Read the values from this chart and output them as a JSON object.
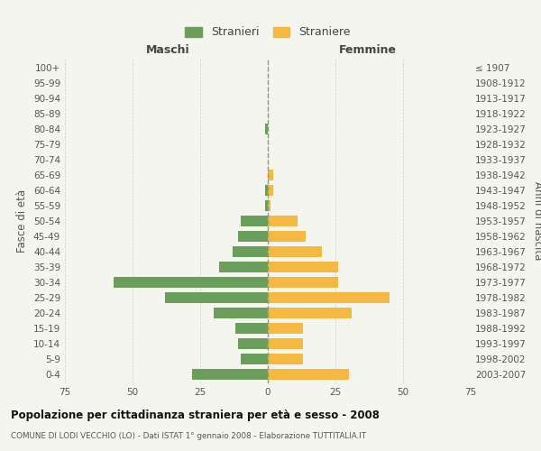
{
  "age_groups": [
    "0-4",
    "5-9",
    "10-14",
    "15-19",
    "20-24",
    "25-29",
    "30-34",
    "35-39",
    "40-44",
    "45-49",
    "50-54",
    "55-59",
    "60-64",
    "65-69",
    "70-74",
    "75-79",
    "80-84",
    "85-89",
    "90-94",
    "95-99",
    "100+"
  ],
  "birth_years": [
    "2003-2007",
    "1998-2002",
    "1993-1997",
    "1988-1992",
    "1983-1987",
    "1978-1982",
    "1973-1977",
    "1968-1972",
    "1963-1967",
    "1958-1962",
    "1953-1957",
    "1948-1952",
    "1943-1947",
    "1938-1942",
    "1933-1937",
    "1928-1932",
    "1923-1927",
    "1918-1922",
    "1913-1917",
    "1908-1912",
    "≤ 1907"
  ],
  "males": [
    28,
    10,
    11,
    12,
    20,
    38,
    57,
    18,
    13,
    11,
    10,
    1,
    1,
    0,
    0,
    0,
    1,
    0,
    0,
    0,
    0
  ],
  "females": [
    30,
    13,
    13,
    13,
    31,
    45,
    26,
    26,
    20,
    14,
    11,
    1,
    2,
    2,
    0,
    0,
    0,
    0,
    0,
    0,
    0
  ],
  "male_color": "#6a9e5a",
  "female_color": "#f5b942",
  "male_label": "Stranieri",
  "female_label": "Straniere",
  "title": "Popolazione per cittadinanza straniera per età e sesso - 2008",
  "subtitle": "COMUNE DI LODI VECCHIO (LO) - Dati ISTAT 1° gennaio 2008 - Elaborazione TUTTITALIA.IT",
  "xlabel_left": "Maschi",
  "xlabel_right": "Femmine",
  "ylabel_left": "Fasce di età",
  "ylabel_right": "Anni di nascita",
  "xlim": 75,
  "background_color": "#f5f5f0"
}
